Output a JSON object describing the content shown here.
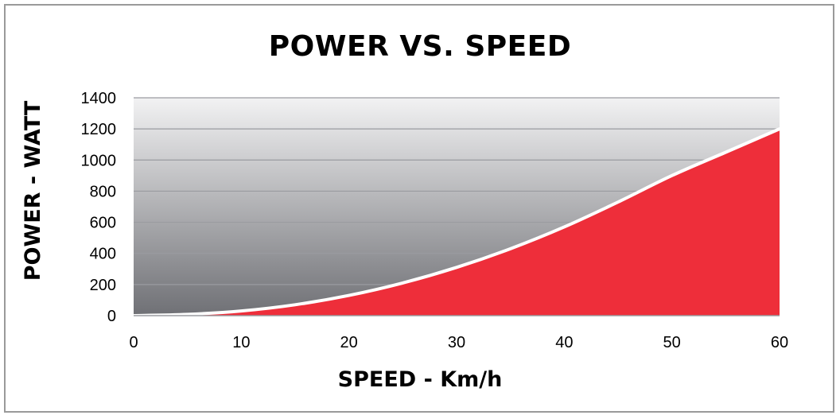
{
  "chart_data": {
    "type": "area",
    "title": "POWER VS. SPEED",
    "xlabel": "SPEED - Km/h",
    "ylabel": "POWER - WATT",
    "xlim": [
      0,
      60
    ],
    "ylim": [
      0,
      1400
    ],
    "x_ticks": [
      "0",
      "10",
      "20",
      "30",
      "40",
      "50",
      "60"
    ],
    "y_ticks": [
      "0",
      "200",
      "400",
      "600",
      "800",
      "1000",
      "1200",
      "1400"
    ],
    "grid": true,
    "legend": "none",
    "series": [
      {
        "x": [
          0,
          5,
          10,
          15,
          20,
          25,
          30,
          35,
          40,
          45,
          50,
          55,
          60
        ],
        "values": [
          0,
          8,
          30,
          70,
          130,
          210,
          310,
          430,
          570,
          730,
          900,
          1050,
          1200
        ]
      }
    ],
    "colors": {
      "fill": "#ee2e3a",
      "line": "#ffffff",
      "plot_top": "#f2f2f3",
      "plot_bottom": "#6f7075",
      "grid": "#9a9ba0"
    }
  }
}
